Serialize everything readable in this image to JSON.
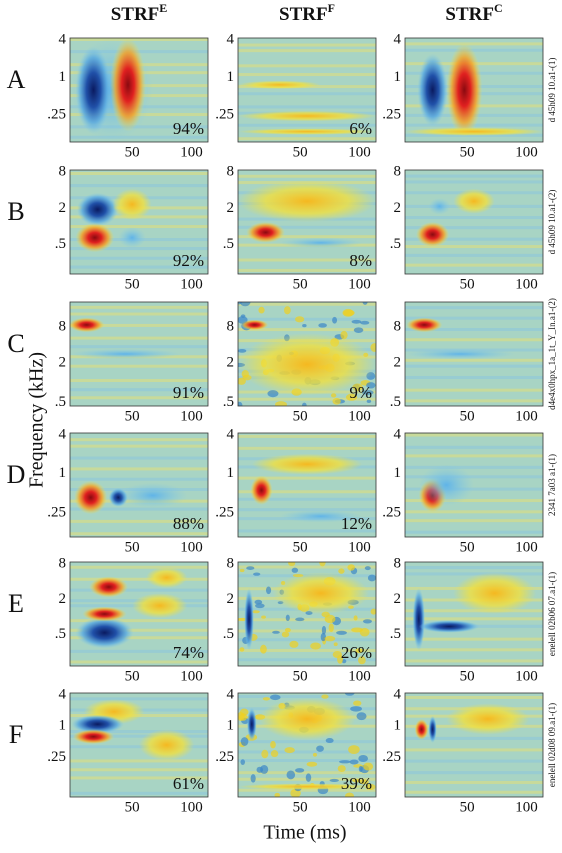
{
  "columns": [
    {
      "base": "STRF",
      "sup": "E"
    },
    {
      "base": "STRF",
      "sup": "F"
    },
    {
      "base": "STRF",
      "sup": "C"
    }
  ],
  "y_axis_label": "Frequency (kHz)",
  "x_axis_label": "Time (ms)",
  "xticks": [
    "50",
    "100"
  ],
  "rows": [
    {
      "label": "A",
      "yticks": [
        "4",
        "1",
        ".25"
      ],
      "percents": [
        "94%",
        "6%"
      ],
      "side_label": "d 45h09 10.a1-(1)"
    },
    {
      "label": "B",
      "yticks": [
        "8",
        "2",
        ".5"
      ],
      "percents": [
        "92%",
        "8%"
      ],
      "side_label": "d 45h09 10.a1-(2)"
    },
    {
      "label": "C",
      "yticks": [
        "8",
        "2",
        ".5"
      ],
      "percents": [
        "91%",
        "9%"
      ],
      "side_label": "d4e4x0hpx_1a_1t_Y_In.a1-(2)"
    },
    {
      "label": "D",
      "yticks": [
        "4",
        "1",
        ".25"
      ],
      "percents": [
        "88%",
        "12%"
      ],
      "side_label": "2341 7a03 a1-(1)"
    },
    {
      "label": "E",
      "yticks": [
        "8",
        "2",
        ".5"
      ],
      "percents": [
        "74%",
        "26%"
      ],
      "side_label": "enelell 02b06 07.a1-(1)"
    },
    {
      "label": "F",
      "yticks": [
        "4",
        "1",
        ".25"
      ],
      "percents": [
        "61%",
        "39%"
      ],
      "side_label": "enelell 02d08 09.a1-(1)"
    }
  ]
}
